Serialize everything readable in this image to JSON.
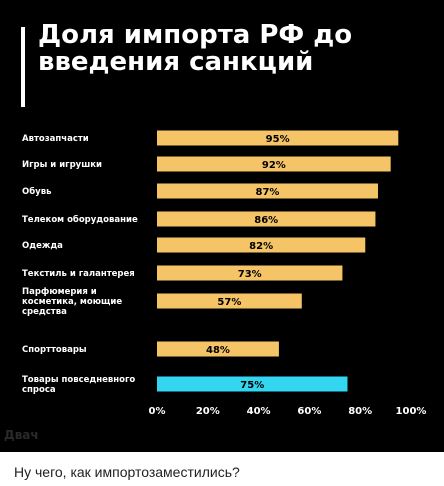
{
  "chart_data": {
    "type": "bar",
    "orientation": "horizontal",
    "title": "Доля импорта РФ до введения санкций",
    "categories": [
      "Автозапчасти",
      "Игры и игрушки",
      "Обувь",
      "Телеком оборудование",
      "Одежда",
      "Текстиль и галантерея",
      "Парфюмерия и косметика, моющие средства",
      "Спорттовары",
      "Товары повседневного спроса"
    ],
    "values": [
      95,
      92,
      87,
      86,
      82,
      73,
      57,
      48,
      75
    ],
    "value_labels": [
      "95%",
      "92%",
      "87%",
      "86%",
      "82%",
      "73%",
      "57%",
      "48%",
      "75%"
    ],
    "bar_colors": [
      "#f5c466",
      "#f5c466",
      "#f5c466",
      "#f5c466",
      "#f5c466",
      "#f5c466",
      "#f5c466",
      "#f5c466",
      "#33d6f0"
    ],
    "xlim": [
      0,
      100
    ],
    "x_ticks": [
      "0%",
      "20%",
      "40%",
      "60%",
      "80%",
      "100%"
    ],
    "grid": false,
    "background": "#000000"
  },
  "watermark": "Двач",
  "caption": "Ну чего, как импортозаместились?"
}
